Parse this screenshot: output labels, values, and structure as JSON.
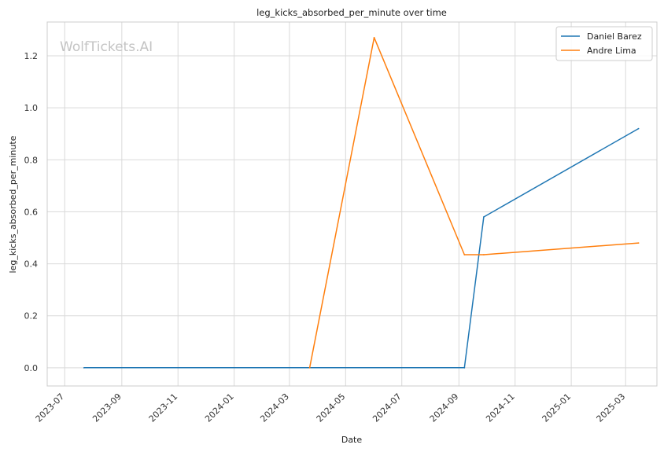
{
  "chart_data": {
    "type": "line",
    "title": "leg_kicks_absorbed_per_minute over time",
    "xlabel": "Date",
    "ylabel": "leg_kicks_absorbed_per_minute",
    "watermark": "WolfTickets.AI",
    "x_ticks": [
      "2023-07",
      "2023-09",
      "2023-11",
      "2024-01",
      "2024-03",
      "2024-05",
      "2024-07",
      "2024-09",
      "2024-11",
      "2025-01",
      "2025-03"
    ],
    "y_ticks": [
      "0.0",
      "0.2",
      "0.4",
      "0.6",
      "0.8",
      "1.0",
      "1.2"
    ],
    "xlim": [
      "2023-06-12",
      "2025-04-04"
    ],
    "ylim": [
      -0.07,
      1.33
    ],
    "grid": true,
    "legend_position": "top-right",
    "series": [
      {
        "name": "Daniel Barez",
        "color": "#1f77b4",
        "points": [
          {
            "x": "2023-07-22",
            "y": 0.0
          },
          {
            "x": "2024-09-07",
            "y": 0.0
          },
          {
            "x": "2024-09-28",
            "y": 0.58
          },
          {
            "x": "2025-03-15",
            "y": 0.92
          }
        ]
      },
      {
        "name": "Andre Lima",
        "color": "#ff7f0e",
        "points": [
          {
            "x": "2024-03-23",
            "y": 0.0
          },
          {
            "x": "2024-06-01",
            "y": 1.27
          },
          {
            "x": "2024-09-07",
            "y": 0.435
          },
          {
            "x": "2024-09-28",
            "y": 0.435
          },
          {
            "x": "2025-03-15",
            "y": 0.48
          }
        ]
      }
    ]
  }
}
